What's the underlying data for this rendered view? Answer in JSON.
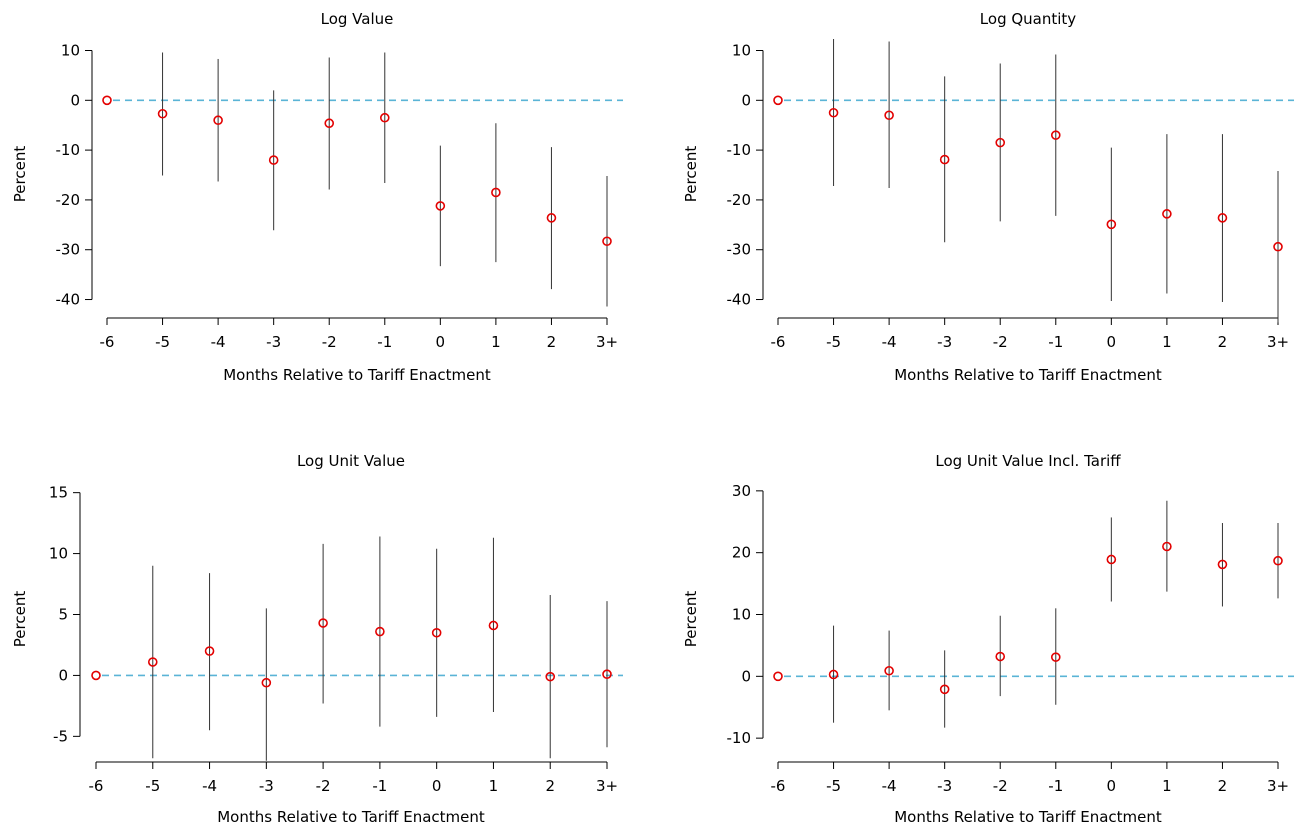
{
  "colors": {
    "point": "#e30000",
    "ci": "#333333",
    "zero_line": "#5ab4d6",
    "axis": "#000000"
  },
  "chart_data": [
    {
      "type": "scatter",
      "title": "Log Value",
      "xlabel": "Months Relative to Tariff Enactment",
      "ylabel": "Percent",
      "categories": [
        "-6",
        "-5",
        "-4",
        "-3",
        "-2",
        "-1",
        "0",
        "1",
        "2",
        "3+"
      ],
      "values": [
        0,
        -2.7,
        -4.0,
        -12.0,
        -4.6,
        -3.5,
        -21.2,
        -18.5,
        -23.6,
        -28.3
      ],
      "ci_lower": [
        0,
        -15.1,
        -16.3,
        -26.1,
        -17.9,
        -16.6,
        -33.3,
        -32.5,
        -37.9,
        -41.4
      ],
      "ci_upper": [
        0,
        9.6,
        8.3,
        2.0,
        8.6,
        9.6,
        -9.1,
        -4.6,
        -9.4,
        -15.2
      ],
      "yticks": [
        10,
        0,
        -10,
        -20,
        -30,
        -40
      ],
      "ytick_labels": [
        "10",
        "0",
        "-10",
        "-20",
        "-30",
        "-40"
      ],
      "ylim": [
        -41.5,
        10.5
      ],
      "reference_line": 0,
      "legend": "none",
      "grid": false
    },
    {
      "type": "scatter",
      "title": "Log Quantity",
      "xlabel": "Months Relative to Tariff Enactment",
      "ylabel": "Percent",
      "categories": [
        "-6",
        "-5",
        "-4",
        "-3",
        "-2",
        "-1",
        "0",
        "1",
        "2",
        "3+"
      ],
      "values": [
        0,
        -2.5,
        -3.0,
        -11.9,
        -8.5,
        -7.0,
        -24.9,
        -22.8,
        -23.6,
        -29.4
      ],
      "ci_lower": [
        0,
        -17.2,
        -17.6,
        -28.5,
        -24.3,
        -23.2,
        -40.3,
        -38.8,
        -40.5,
        -44.6
      ],
      "ci_upper": [
        0,
        12.3,
        11.8,
        4.8,
        7.4,
        9.2,
        -9.5,
        -6.8,
        -6.8,
        -14.2
      ],
      "yticks": [
        10,
        0,
        -10,
        -20,
        -30,
        -40
      ],
      "ytick_labels": [
        "10",
        "0",
        "-10",
        "-20",
        "-30",
        "-40"
      ],
      "ylim": [
        -41.5,
        10.5
      ],
      "reference_line": 0,
      "legend": "none",
      "grid": false
    },
    {
      "type": "scatter",
      "title": "Log Unit Value",
      "xlabel": "Months Relative to Tariff Enactment",
      "ylabel": "Percent",
      "categories": [
        "-6",
        "-5",
        "-4",
        "-3",
        "-2",
        "-1",
        "0",
        "1",
        "2",
        "3+"
      ],
      "values": [
        0,
        1.1,
        2.0,
        -0.6,
        4.3,
        3.6,
        3.5,
        4.1,
        -0.1,
        0.1
      ],
      "ci_lower": [
        0,
        -6.8,
        -4.5,
        -7.0,
        -2.3,
        -4.2,
        -3.4,
        -3.0,
        -6.8,
        -5.9
      ],
      "ci_upper": [
        0,
        9.0,
        8.4,
        5.5,
        10.8,
        11.4,
        10.4,
        11.3,
        6.6,
        6.1
      ],
      "yticks": [
        15,
        10,
        5,
        0,
        -5
      ],
      "ytick_labels": [
        "15",
        "10",
        "5",
        "0",
        "-5"
      ],
      "ylim": [
        -5.3,
        15.3
      ],
      "reference_line": 0,
      "legend": "none",
      "grid": false
    },
    {
      "type": "scatter",
      "title": "Log Unit Value Incl. Tariff",
      "xlabel": "Months Relative to Tariff Enactment",
      "ylabel": "Percent",
      "categories": [
        "-6",
        "-5",
        "-4",
        "-3",
        "-2",
        "-1",
        "0",
        "1",
        "2",
        "3+"
      ],
      "values": [
        0,
        0.3,
        0.9,
        -2.1,
        3.2,
        3.1,
        18.9,
        21.0,
        18.1,
        18.7
      ],
      "ci_lower": [
        0,
        -7.5,
        -5.5,
        -8.3,
        -3.2,
        -4.6,
        12.1,
        13.7,
        11.3,
        12.6
      ],
      "ci_upper": [
        0,
        8.2,
        7.4,
        4.2,
        9.8,
        11.0,
        25.7,
        28.4,
        24.8,
        24.8
      ],
      "yticks": [
        30,
        20,
        10,
        0,
        -10
      ],
      "ytick_labels": [
        "30",
        "20",
        "10",
        "0",
        "-10"
      ],
      "ylim": [
        -10.3,
        30.3
      ],
      "reference_line": 0,
      "legend": "none",
      "grid": false
    }
  ]
}
